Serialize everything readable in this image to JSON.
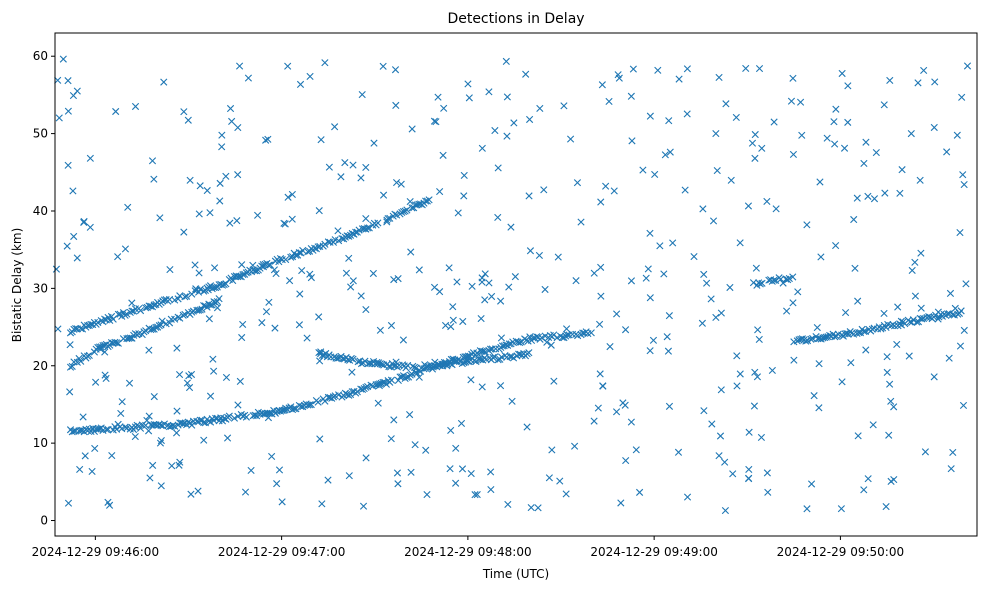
{
  "chart_data": {
    "type": "scatter",
    "title": "Detections in Delay",
    "xlabel": "Time (UTC)",
    "ylabel": "Bistatic Delay (km)",
    "marker": "x",
    "color": "#1f77b4",
    "grid": false,
    "xlim": [
      "2024-12-29 09:45:47",
      "2024-12-29 09:50:44"
    ],
    "ylim": [
      -2,
      63
    ],
    "xticks": [
      "2024-12-29 09:46:00",
      "2024-12-29 09:47:00",
      "2024-12-29 09:48:00",
      "2024-12-29 09:49:00",
      "2024-12-29 09:50:00"
    ],
    "yticks": [
      0,
      10,
      20,
      30,
      40,
      50,
      60
    ],
    "tracks": [
      {
        "x": [
          "2024-12-29 09:45:52",
          "2024-12-29 09:46:30",
          "2024-12-29 09:47:00",
          "2024-12-29 09:47:20",
          "2024-12-29 09:47:40",
          "2024-12-29 09:48:00",
          "2024-12-29 09:48:20",
          "2024-12-29 09:48:40"
        ],
        "y": [
          11.5,
          12.5,
          14.2,
          16.2,
          18.6,
          21.3,
          23.5,
          24.2
        ]
      },
      {
        "x": [
          "2024-12-29 09:45:52",
          "2024-12-29 09:46:20",
          "2024-12-29 09:46:40",
          "2024-12-29 09:47:00",
          "2024-12-29 09:47:20",
          "2024-12-29 09:47:40",
          "2024-12-29 09:47:48"
        ],
        "y": [
          24.5,
          28.0,
          30.5,
          33.8,
          36.5,
          40.0,
          41.5
        ]
      },
      {
        "x": [
          "2024-12-29 09:45:52",
          "2024-12-29 09:46:00",
          "2024-12-29 09:46:20",
          "2024-12-29 09:46:40"
        ],
        "y": [
          20.0,
          22.0,
          25.0,
          28.5
        ]
      },
      {
        "x": [
          "2024-12-29 09:47:12",
          "2024-12-29 09:47:26",
          "2024-12-29 09:47:42",
          "2024-12-29 09:48:00",
          "2024-12-29 09:48:20"
        ],
        "y": [
          21.5,
          20.5,
          19.8,
          20.5,
          21.5
        ]
      },
      {
        "x": [
          "2024-12-29 09:49:45",
          "2024-12-29 09:50:00",
          "2024-12-29 09:50:20",
          "2024-12-29 09:50:40"
        ],
        "y": [
          23.2,
          24.0,
          25.5,
          27.0
        ]
      },
      {
        "x": [
          "2024-12-29 09:49:32",
          "2024-12-29 09:49:45"
        ],
        "y": [
          30.5,
          31.5
        ]
      }
    ],
    "noise_points": 500
  }
}
